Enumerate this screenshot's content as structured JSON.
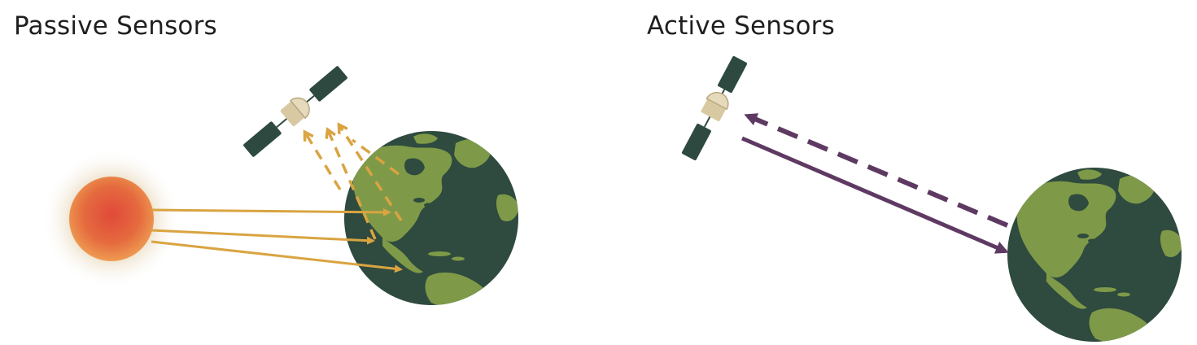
{
  "panels": {
    "passive": {
      "title": "Passive Sensors"
    },
    "active": {
      "title": "Active Sensors"
    }
  },
  "colors": {
    "reflected_light": "#D9A441",
    "active_signal": "#5E3A62",
    "ocean": "#2F4A3E",
    "land": "#7E9A48",
    "satellite_panel": "#2E4A40",
    "satellite_body": "#D9C9A3",
    "sun_core": "#E0573A",
    "sun_glow": "#E8D8B8"
  },
  "icons": {
    "sun": "sun-icon",
    "satellite": "satellite-icon",
    "earth": "earth-icon"
  }
}
